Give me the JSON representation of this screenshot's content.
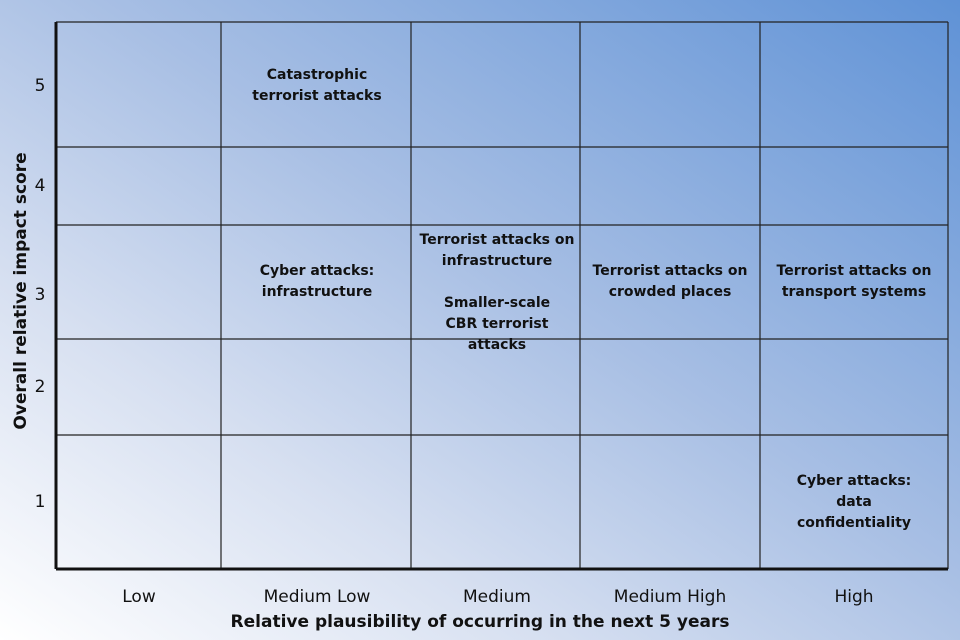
{
  "chart_data": {
    "type": "table",
    "title": "",
    "xlabel": "Relative plausibility of occurring in the next 5 years",
    "ylabel": "Overall relative impact score",
    "x_categories": [
      "Low",
      "Medium Low",
      "Medium",
      "Medium High",
      "High"
    ],
    "y_ticks": [
      "1",
      "2",
      "3",
      "4",
      "5"
    ],
    "grid": true,
    "items": [
      {
        "label": "Catastrophic terrorist attacks",
        "plausibility": "Medium Low",
        "impact": 5
      },
      {
        "label": "Cyber attacks: infrastructure",
        "plausibility": "Medium Low",
        "impact": 3
      },
      {
        "label": "Terrorist attacks on infrastructure",
        "plausibility": "Medium",
        "impact": 3
      },
      {
        "label": "Smaller-scale CBR terrorist attacks",
        "plausibility": "Medium",
        "impact": 3
      },
      {
        "label": "Terrorist attacks on crowded places",
        "plausibility": "Medium High",
        "impact": 3
      },
      {
        "label": "Terrorist attacks on transport systems",
        "plausibility": "High",
        "impact": 3
      },
      {
        "label": "Cyber attacks: data confidentiality",
        "plausibility": "High",
        "impact": 1
      }
    ],
    "colors": {
      "grid": "#222222",
      "text": "#111111",
      "background_light": "#ffffff",
      "background_dark": "#5f92d6"
    }
  }
}
